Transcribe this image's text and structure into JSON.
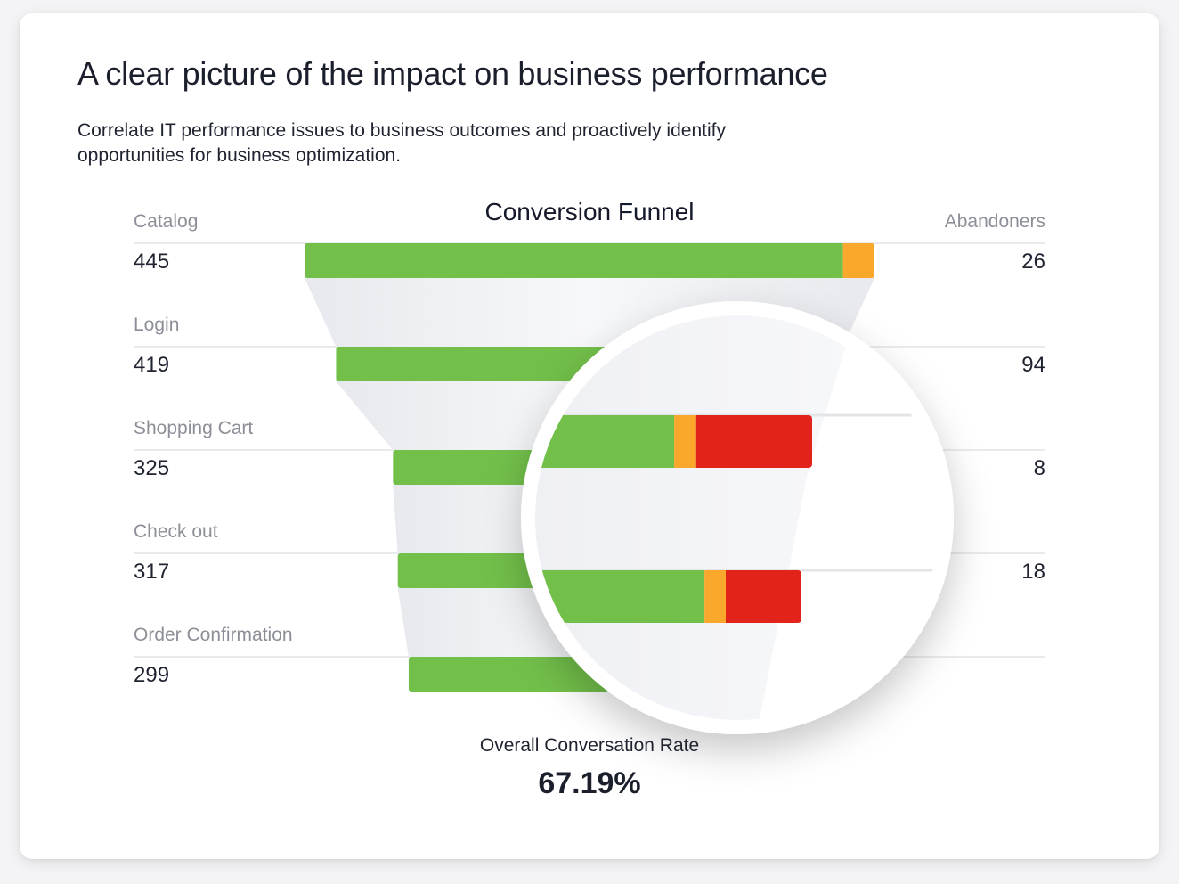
{
  "header": {
    "title": "A clear picture of the impact on business performance",
    "subtitle": "Correlate IT performance issues to business outcomes and proactively identify opportunities for business optimization."
  },
  "chart_data": {
    "type": "bar",
    "title": "Conversion Funnel",
    "left_header": "",
    "right_header": "Abandoners",
    "stages": [
      {
        "label": "Catalog",
        "count": "445",
        "abandoners": "26"
      },
      {
        "label": "Login",
        "count": "419",
        "abandoners": "94"
      },
      {
        "label": "Shopping Cart",
        "count": "325",
        "abandoners": "8"
      },
      {
        "label": "Check out",
        "count": "317",
        "abandoners": "18"
      },
      {
        "label": "Order Confirmation",
        "count": "299",
        "abandoners": ""
      }
    ],
    "series": [
      {
        "name": "",
        "color": "#72bf4a",
        "values": [
          445,
          419,
          325,
          317,
          299
        ]
      },
      {
        "name": "",
        "color": "#f9a82b",
        "values": [
          26,
          0,
          0,
          0,
          0
        ]
      }
    ],
    "magnified_rows": [
      {
        "green": 0.56,
        "orange": 0.07,
        "red": 0.37
      },
      {
        "green": 0.68,
        "orange": 0.07,
        "red": 0.25
      }
    ],
    "overall_label": "Overall Conversation Rate",
    "overall_value": "67.19%"
  },
  "colors": {
    "green": "#72bf4a",
    "orange": "#f9a82b",
    "red": "#e2231a",
    "separator": "#e3e4e8",
    "funnel_shade": "#eceef2"
  }
}
